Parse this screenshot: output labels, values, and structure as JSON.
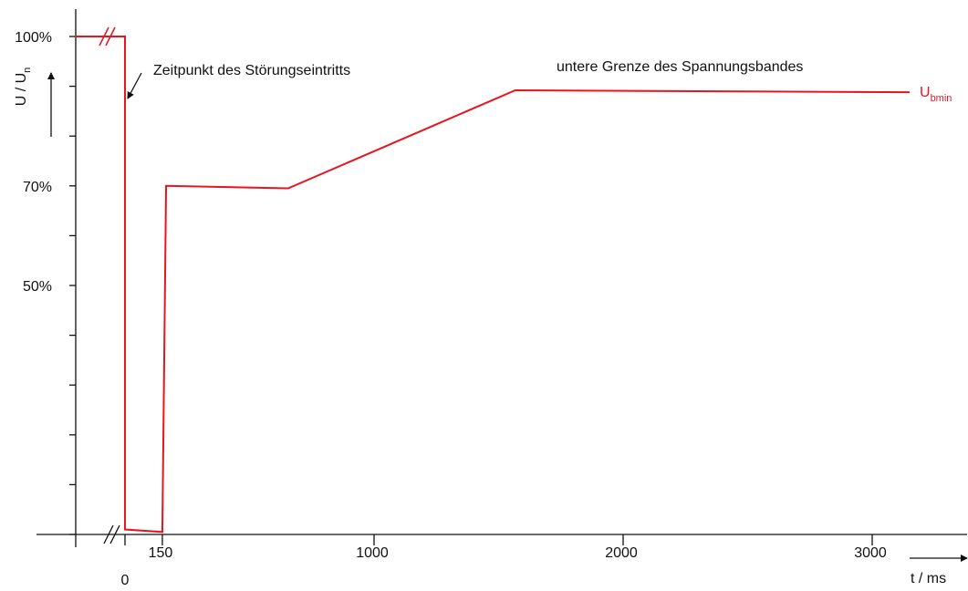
{
  "chart_data": {
    "type": "line",
    "ylabel": "U / U",
    "ylabel_subscript": "n",
    "xlabel": "t / ms",
    "annotations": [
      "Zeitpunkt des Störungseintritts",
      "untere Grenze des Spannungsbandes"
    ],
    "x": [
      -200,
      0,
      0,
      150,
      165,
      655,
      1567,
      3150
    ],
    "series": [
      {
        "name": "U",
        "name_subscript": "bmin",
        "color": "#e8141e",
        "values": [
          100,
          100,
          1,
          0.5,
          70,
          69.5,
          89.2,
          88.8
        ]
      }
    ],
    "xlim": [
      0,
      3000
    ],
    "xticks": [
      0,
      150,
      1000,
      2000,
      3000
    ],
    "ylim": [
      0,
      100
    ],
    "yticks": [
      {
        "value": 100,
        "label": "100%"
      },
      {
        "value": 70,
        "label": "70%"
      },
      {
        "value": 50,
        "label": "50%"
      }
    ],
    "yminor_ticks": [
      0,
      10,
      20,
      30,
      40,
      60,
      80,
      90
    ],
    "grid": false
  }
}
